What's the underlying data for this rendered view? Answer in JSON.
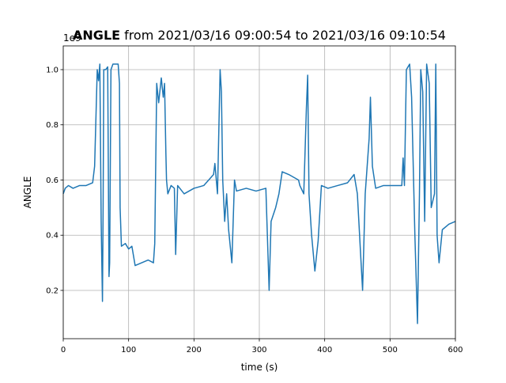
{
  "chart_data": {
    "type": "line",
    "title_bold": "ANGLE",
    "title": "from 2021/03/16 09:00:54 to 2021/03/16 09:10:54",
    "offset_text": "1e9",
    "xlabel": "time (s)",
    "ylabel": "ANGLE",
    "x": [
      0,
      3,
      8,
      15,
      25,
      35,
      45,
      48,
      52,
      54,
      56,
      58,
      60,
      61,
      62,
      65,
      68,
      70,
      71,
      73,
      76,
      80,
      84,
      86,
      87,
      89,
      95,
      100,
      105,
      110,
      120,
      130,
      138,
      140,
      143,
      146,
      150,
      153,
      155,
      157,
      158,
      160,
      165,
      170,
      172,
      175,
      185,
      200,
      215,
      230,
      232,
      236,
      240,
      242,
      244,
      247,
      250,
      253,
      258,
      262,
      265,
      280,
      295,
      310,
      315,
      318,
      325,
      330,
      335,
      345,
      360,
      362,
      368,
      372,
      374,
      376,
      380,
      385,
      390,
      395,
      405,
      420,
      435,
      445,
      450,
      455,
      458,
      462,
      468,
      470,
      473,
      478,
      490,
      505,
      518,
      520,
      522,
      525,
      530,
      533,
      538,
      542,
      545,
      547,
      550,
      553,
      556,
      560,
      563,
      568,
      570,
      572,
      575,
      580,
      590,
      600
    ],
    "series": [
      {
        "name": "ANGLE",
        "color": "#1f77b4",
        "values": [
          0.55,
          0.57,
          0.58,
          0.57,
          0.58,
          0.58,
          0.59,
          0.65,
          1.0,
          0.96,
          1.02,
          0.45,
          0.16,
          0.5,
          1.0,
          1.0,
          1.01,
          0.25,
          0.3,
          1.0,
          1.02,
          1.02,
          1.02,
          0.95,
          0.5,
          0.36,
          0.37,
          0.35,
          0.36,
          0.29,
          0.3,
          0.31,
          0.3,
          0.37,
          0.95,
          0.88,
          0.97,
          0.9,
          0.95,
          0.7,
          0.6,
          0.55,
          0.58,
          0.57,
          0.33,
          0.58,
          0.55,
          0.57,
          0.58,
          0.62,
          0.66,
          0.55,
          1.0,
          0.92,
          0.6,
          0.45,
          0.55,
          0.42,
          0.3,
          0.6,
          0.56,
          0.57,
          0.56,
          0.57,
          0.2,
          0.45,
          0.5,
          0.55,
          0.63,
          0.62,
          0.6,
          0.58,
          0.55,
          0.86,
          0.98,
          0.55,
          0.4,
          0.27,
          0.38,
          0.58,
          0.57,
          0.58,
          0.59,
          0.62,
          0.55,
          0.33,
          0.2,
          0.55,
          0.75,
          0.9,
          0.65,
          0.57,
          0.58,
          0.58,
          0.58,
          0.68,
          0.58,
          1.0,
          1.02,
          0.9,
          0.4,
          0.08,
          0.55,
          1.0,
          0.92,
          0.45,
          1.02,
          0.95,
          0.5,
          0.55,
          1.02,
          0.4,
          0.3,
          0.42,
          0.44,
          0.45
        ]
      }
    ],
    "xlim": [
      0,
      600
    ],
    "xticks": [
      0,
      100,
      200,
      300,
      400,
      500,
      600
    ],
    "ylim": [
      0.025,
      1.086
    ],
    "yticks": [
      0.2,
      0.4,
      0.6,
      0.8,
      {
        "value": 1,
        "label": "1.0"
      }
    ],
    "grid": true
  }
}
